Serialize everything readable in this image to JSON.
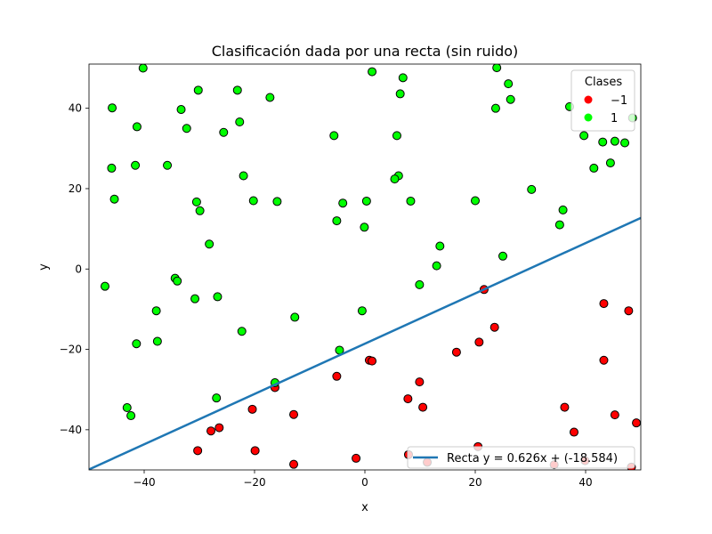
{
  "chart_data": {
    "type": "scatter",
    "title": "Clasificación dada por una recta (sin ruido)",
    "xlabel": "x",
    "ylabel": "y",
    "xlim": [
      -50,
      50
    ],
    "ylim": [
      -50,
      51
    ],
    "xticks": [
      -40,
      -20,
      0,
      20,
      40
    ],
    "yticks": [
      -40,
      -20,
      0,
      20,
      40
    ],
    "xtick_labels": [
      "−40",
      "−20",
      "0",
      "20",
      "40"
    ],
    "ytick_labels": [
      "−40",
      "−20",
      "0",
      "20",
      "40"
    ],
    "grid": false,
    "legends": [
      {
        "placement": "upper-right",
        "title": "Clases",
        "entries": [
          {
            "label": "−1",
            "color": "#ff0000"
          },
          {
            "label": "1",
            "color": "#00ff00"
          }
        ]
      },
      {
        "placement": "lower-right",
        "entries": [
          {
            "label": "Recta y = 0.626x + (-18.584)",
            "color": "#1f77b4"
          }
        ]
      }
    ],
    "line": {
      "slope": 0.626,
      "intercept": -18.584,
      "color": "#1f77b4"
    },
    "series": [
      {
        "name": "−1",
        "color": "#ff0000",
        "points": [
          [
            43.3,
            -8.6
          ],
          [
            47.8,
            -10.4
          ],
          [
            21.6,
            -5.1
          ],
          [
            23.5,
            -14.5
          ],
          [
            20.7,
            -18.2
          ],
          [
            16.6,
            -20.7
          ],
          [
            43.3,
            -22.7
          ],
          [
            0.8,
            -22.7
          ],
          [
            1.3,
            -22.9
          ],
          [
            -5.1,
            -26.7
          ],
          [
            -16.3,
            -29.5
          ],
          [
            9.9,
            -28.1
          ],
          [
            7.8,
            -32.3
          ],
          [
            10.5,
            -34.4
          ],
          [
            -20.4,
            -34.9
          ],
          [
            -12.9,
            -36.2
          ],
          [
            36.2,
            -34.4
          ],
          [
            45.3,
            -36.3
          ],
          [
            49.2,
            -38.3
          ],
          [
            -26.4,
            -39.5
          ],
          [
            -27.9,
            -40.3
          ],
          [
            37.9,
            -40.6
          ],
          [
            -30.3,
            -45.2
          ],
          [
            -19.9,
            -45.2
          ],
          [
            -1.6,
            -47.1
          ],
          [
            7.9,
            -46.2
          ],
          [
            11.3,
            -48.1
          ],
          [
            -12.9,
            -48.6
          ],
          [
            34.3,
            -48.7
          ],
          [
            39.9,
            -47.7
          ],
          [
            48.3,
            -49.3
          ],
          [
            20.5,
            -44.2
          ]
        ]
      },
      {
        "name": "1",
        "color": "#00ff00",
        "points": [
          [
            -40.2,
            50.0
          ],
          [
            23.9,
            50.1
          ],
          [
            1.3,
            49.1
          ],
          [
            6.9,
            47.6
          ],
          [
            26.0,
            46.1
          ],
          [
            -30.2,
            44.5
          ],
          [
            -23.1,
            44.5
          ],
          [
            6.4,
            43.6
          ],
          [
            -17.2,
            42.7
          ],
          [
            26.4,
            42.2
          ],
          [
            -45.8,
            40.1
          ],
          [
            -33.3,
            39.7
          ],
          [
            23.7,
            40.0
          ],
          [
            37.1,
            40.4
          ],
          [
            -22.7,
            36.6
          ],
          [
            -41.3,
            35.4
          ],
          [
            -32.3,
            35.0
          ],
          [
            -25.6,
            34.0
          ],
          [
            -5.6,
            33.2
          ],
          [
            5.8,
            33.2
          ],
          [
            39.7,
            33.2
          ],
          [
            43.1,
            31.6
          ],
          [
            45.3,
            31.8
          ],
          [
            47.1,
            31.4
          ],
          [
            44.5,
            26.4
          ],
          [
            41.5,
            25.1
          ],
          [
            -35.8,
            25.8
          ],
          [
            -41.6,
            25.8
          ],
          [
            -45.9,
            25.1
          ],
          [
            -22.0,
            23.2
          ],
          [
            6.1,
            23.2
          ],
          [
            5.4,
            22.4
          ],
          [
            30.2,
            19.8
          ],
          [
            -45.4,
            17.4
          ],
          [
            -30.5,
            16.7
          ],
          [
            -20.2,
            17.0
          ],
          [
            -15.9,
            16.8
          ],
          [
            -4.0,
            16.4
          ],
          [
            0.3,
            16.9
          ],
          [
            8.3,
            16.9
          ],
          [
            20.0,
            17.0
          ],
          [
            -29.9,
            14.5
          ],
          [
            35.9,
            14.7
          ],
          [
            -5.1,
            12.0
          ],
          [
            -0.1,
            10.4
          ],
          [
            35.3,
            11.0
          ],
          [
            -28.2,
            6.2
          ],
          [
            13.6,
            5.7
          ],
          [
            25.0,
            3.2
          ],
          [
            13.0,
            0.8
          ],
          [
            -34.4,
            -2.3
          ],
          [
            -34.0,
            -3.0
          ],
          [
            9.9,
            -3.9
          ],
          [
            -47.1,
            -4.3
          ],
          [
            -26.7,
            -6.9
          ],
          [
            -30.8,
            -7.4
          ],
          [
            -37.8,
            -10.4
          ],
          [
            -0.5,
            -10.4
          ],
          [
            -12.7,
            -12.0
          ],
          [
            -22.3,
            -15.5
          ],
          [
            -37.6,
            -18.0
          ],
          [
            -41.4,
            -18.6
          ],
          [
            -4.6,
            -20.2
          ],
          [
            -16.3,
            -28.3
          ],
          [
            -26.9,
            -32.1
          ],
          [
            -43.1,
            -34.5
          ],
          [
            -42.4,
            -36.5
          ],
          [
            48.5,
            37.6
          ]
        ]
      }
    ]
  }
}
